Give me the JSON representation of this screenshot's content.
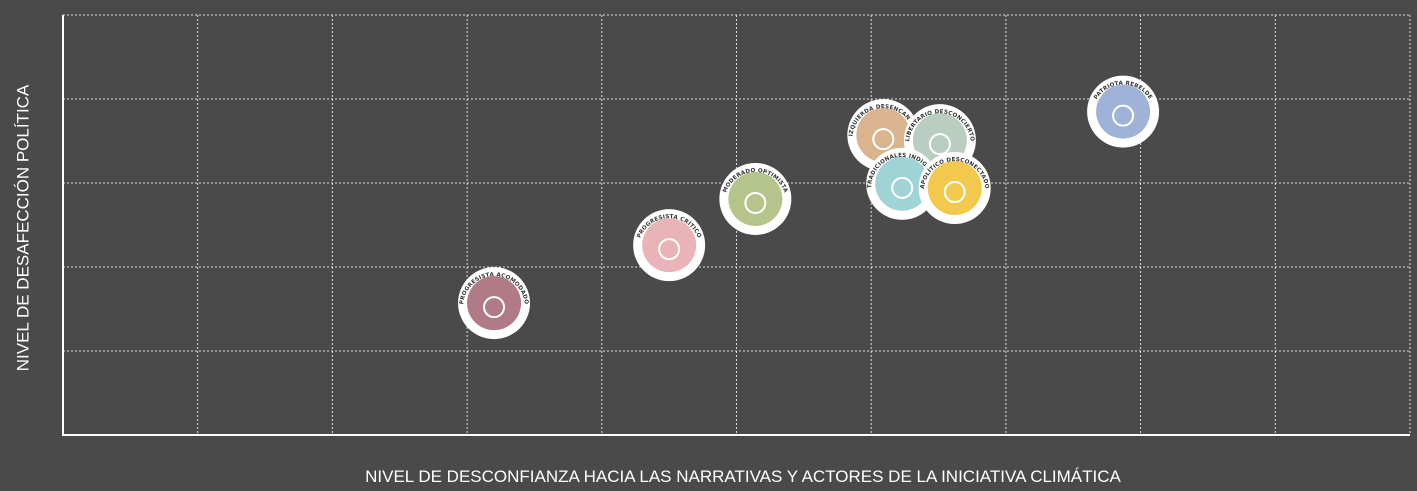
{
  "chart_data": {
    "type": "scatter",
    "x_label": "NIVEL DE DESCONFIANZA HACIA LAS NARRATIVAS Y ACTORES DE LA INICIATIVA CLIMÁTICA",
    "y_label": "NIVEL DE DESAFECCIÓN POLÍTICA",
    "xlim": [
      0,
      10
    ],
    "ylim": [
      0,
      5
    ],
    "xticks": [
      1,
      2,
      3,
      4,
      5,
      6,
      7,
      8,
      9,
      10
    ],
    "yticks": [
      1,
      2,
      3,
      4,
      5
    ],
    "grid": true,
    "series": [
      {
        "name": "PROGRESISTA ACOMODADO",
        "color": "#b07a86",
        "x": [
          3.2
        ],
        "values": [
          1.57
        ]
      },
      {
        "name": "PROGRESISTA CRÍTICO",
        "color": "#e8b4b8",
        "x": [
          4.5
        ],
        "values": [
          2.26
        ]
      },
      {
        "name": "MODERADO OPTIMISTA",
        "color": "#b5c48a",
        "x": [
          5.14
        ],
        "values": [
          2.81
        ]
      },
      {
        "name": "IZQUIERDA DESENCANTADA",
        "color": "#d9b48f",
        "x": [
          6.09
        ],
        "values": [
          3.57
        ]
      },
      {
        "name": "LIBERTARIO DESCONCIERTO",
        "color": "#b9cdc0",
        "x": [
          6.51
        ],
        "values": [
          3.51
        ]
      },
      {
        "name": "TRADICIONALES INDIGNADOS",
        "color": "#9fd3d6",
        "x": [
          6.23
        ],
        "values": [
          2.99
        ]
      },
      {
        "name": "APOLÍTICO DESCONECTADO",
        "color": "#f2c94c",
        "x": [
          6.62
        ],
        "values": [
          2.94
        ]
      },
      {
        "name": "PATRIOTA REBELDE",
        "color": "#9fb3d9",
        "x": [
          7.87
        ],
        "values": [
          3.85
        ]
      }
    ]
  }
}
